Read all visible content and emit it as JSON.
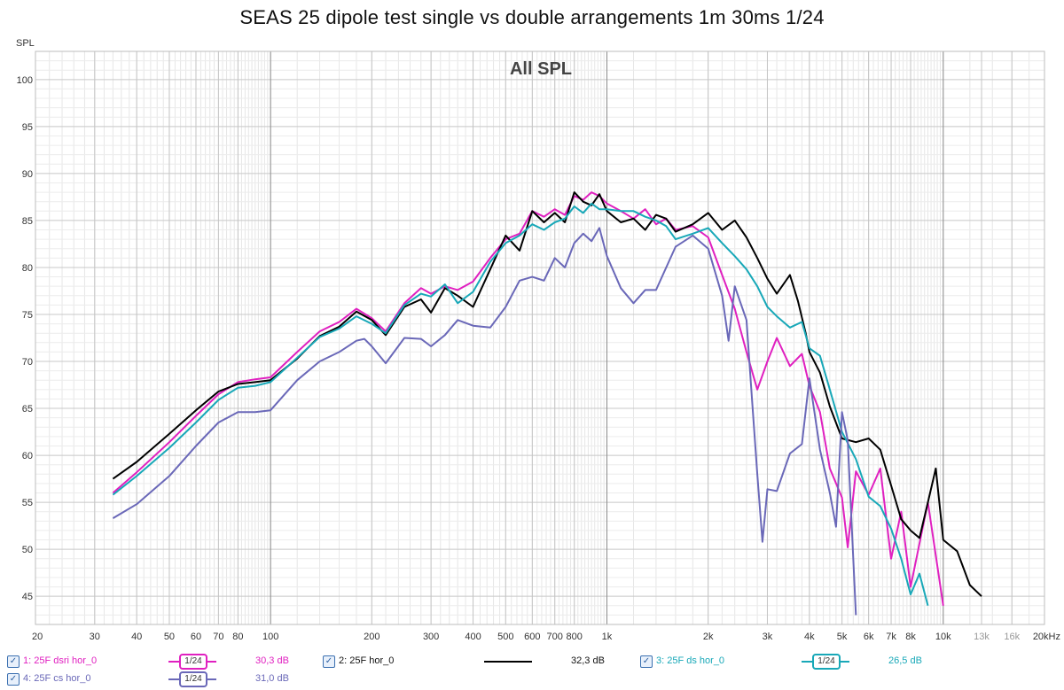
{
  "title": "SEAS 25 dipole test single vs double arrangements 1m 30ms 1/24",
  "chart_data": {
    "type": "line",
    "title": "SEAS 25 dipole test single vs double arrangements 1m 30ms 1/24",
    "inner_title": "All SPL",
    "ylabel": "SPL",
    "xunit": "Hz",
    "xscale": "log",
    "xlim": [
      20,
      20000
    ],
    "ylim": [
      42,
      103
    ],
    "grid": true,
    "x_ticks": [
      {
        "v": 20,
        "t": "20"
      },
      {
        "v": 30,
        "t": "30"
      },
      {
        "v": 40,
        "t": "40"
      },
      {
        "v": 50,
        "t": "50"
      },
      {
        "v": 60,
        "t": "60"
      },
      {
        "v": 70,
        "t": "70"
      },
      {
        "v": 80,
        "t": "80"
      },
      {
        "v": 100,
        "t": "100"
      },
      {
        "v": 200,
        "t": "200"
      },
      {
        "v": 300,
        "t": "300"
      },
      {
        "v": 400,
        "t": "400"
      },
      {
        "v": 500,
        "t": "500"
      },
      {
        "v": 600,
        "t": "600"
      },
      {
        "v": 700,
        "t": "700"
      },
      {
        "v": 800,
        "t": "800"
      },
      {
        "v": 1000,
        "t": "1k"
      },
      {
        "v": 2000,
        "t": "2k"
      },
      {
        "v": 3000,
        "t": "3k"
      },
      {
        "v": 4000,
        "t": "4k"
      },
      {
        "v": 5000,
        "t": "5k"
      },
      {
        "v": 6000,
        "t": "6k"
      },
      {
        "v": 7000,
        "t": "7k"
      },
      {
        "v": 8000,
        "t": "8k"
      },
      {
        "v": 10000,
        "t": "10k"
      },
      {
        "v": 13000,
        "t": "13k"
      },
      {
        "v": 16000,
        "t": "16k"
      },
      {
        "v": 20000,
        "t": "20kHz"
      }
    ],
    "y_ticks": [
      45,
      50,
      55,
      60,
      65,
      70,
      75,
      80,
      85,
      90,
      95,
      100
    ],
    "series": [
      {
        "name": "1: 25F dsri hor_0",
        "color": "#e020c0",
        "smoothing": "1/24",
        "offset": "30,3 dB",
        "points": [
          [
            34,
            56.0
          ],
          [
            40,
            58.2
          ],
          [
            50,
            61.4
          ],
          [
            60,
            64.2
          ],
          [
            70,
            66.5
          ],
          [
            80,
            67.8
          ],
          [
            90,
            68.1
          ],
          [
            100,
            68.3
          ],
          [
            120,
            71.0
          ],
          [
            140,
            73.2
          ],
          [
            160,
            74.2
          ],
          [
            180,
            75.6
          ],
          [
            200,
            74.6
          ],
          [
            220,
            73.2
          ],
          [
            250,
            76.2
          ],
          [
            280,
            77.8
          ],
          [
            300,
            77.2
          ],
          [
            330,
            78.0
          ],
          [
            360,
            77.6
          ],
          [
            400,
            78.5
          ],
          [
            450,
            81.0
          ],
          [
            500,
            83.0
          ],
          [
            550,
            83.6
          ],
          [
            600,
            86.0
          ],
          [
            650,
            85.4
          ],
          [
            700,
            86.2
          ],
          [
            750,
            85.6
          ],
          [
            800,
            87.6
          ],
          [
            850,
            87.2
          ],
          [
            900,
            88.0
          ],
          [
            950,
            87.6
          ],
          [
            1000,
            86.8
          ],
          [
            1100,
            86.0
          ],
          [
            1200,
            85.2
          ],
          [
            1300,
            86.2
          ],
          [
            1400,
            84.6
          ],
          [
            1500,
            85.2
          ],
          [
            1600,
            84.0
          ],
          [
            1800,
            84.4
          ],
          [
            2000,
            83.2
          ],
          [
            2200,
            79.2
          ],
          [
            2400,
            75.6
          ],
          [
            2600,
            71.0
          ],
          [
            2800,
            67.0
          ],
          [
            3000,
            70.0
          ],
          [
            3200,
            72.5
          ],
          [
            3500,
            69.5
          ],
          [
            3800,
            70.8
          ],
          [
            4000,
            67.4
          ],
          [
            4300,
            64.6
          ],
          [
            4600,
            58.6
          ],
          [
            5000,
            55.5
          ],
          [
            5200,
            50.2
          ],
          [
            5500,
            58.3
          ],
          [
            6000,
            55.8
          ],
          [
            6500,
            58.6
          ],
          [
            7000,
            49.0
          ],
          [
            7500,
            54.0
          ],
          [
            8000,
            46.0
          ],
          [
            9000,
            55.0
          ],
          [
            10000,
            44.0
          ]
        ]
      },
      {
        "name": "2: 25F hor_0",
        "color": "#000000",
        "smoothing": "",
        "offset": "32,3 dB",
        "points": [
          [
            34,
            57.5
          ],
          [
            40,
            59.3
          ],
          [
            50,
            62.3
          ],
          [
            60,
            64.8
          ],
          [
            70,
            66.8
          ],
          [
            80,
            67.6
          ],
          [
            90,
            67.8
          ],
          [
            100,
            68.0
          ],
          [
            120,
            70.3
          ],
          [
            140,
            72.7
          ],
          [
            160,
            73.7
          ],
          [
            180,
            75.3
          ],
          [
            200,
            74.4
          ],
          [
            220,
            72.8
          ],
          [
            250,
            75.8
          ],
          [
            280,
            76.6
          ],
          [
            300,
            75.2
          ],
          [
            330,
            77.8
          ],
          [
            360,
            77.0
          ],
          [
            400,
            75.8
          ],
          [
            450,
            79.8
          ],
          [
            500,
            83.4
          ],
          [
            550,
            81.8
          ],
          [
            600,
            86.0
          ],
          [
            650,
            84.8
          ],
          [
            700,
            85.8
          ],
          [
            750,
            84.8
          ],
          [
            800,
            88.0
          ],
          [
            850,
            87.0
          ],
          [
            900,
            86.6
          ],
          [
            950,
            87.8
          ],
          [
            1000,
            86.0
          ],
          [
            1100,
            84.8
          ],
          [
            1200,
            85.2
          ],
          [
            1300,
            84.0
          ],
          [
            1400,
            85.6
          ],
          [
            1500,
            85.2
          ],
          [
            1600,
            83.8
          ],
          [
            1800,
            84.6
          ],
          [
            2000,
            85.8
          ],
          [
            2200,
            84.0
          ],
          [
            2400,
            85.0
          ],
          [
            2600,
            83.2
          ],
          [
            2800,
            81.0
          ],
          [
            3000,
            78.8
          ],
          [
            3200,
            77.2
          ],
          [
            3500,
            79.2
          ],
          [
            3700,
            76.4
          ],
          [
            3900,
            73.0
          ],
          [
            4000,
            71.0
          ],
          [
            4300,
            68.8
          ],
          [
            4600,
            65.2
          ],
          [
            5000,
            61.8
          ],
          [
            5500,
            61.4
          ],
          [
            6000,
            61.8
          ],
          [
            6500,
            60.6
          ],
          [
            7000,
            56.8
          ],
          [
            7500,
            53.2
          ],
          [
            8000,
            52.0
          ],
          [
            8500,
            51.2
          ],
          [
            9000,
            55.0
          ],
          [
            9500,
            58.6
          ],
          [
            10000,
            51.0
          ],
          [
            11000,
            49.8
          ],
          [
            12000,
            46.2
          ],
          [
            13000,
            45.0
          ]
        ]
      },
      {
        "name": "3: 25F ds hor_0",
        "color": "#18a8b8",
        "smoothing": "1/24",
        "offset": "26,5 dB",
        "points": [
          [
            34,
            55.8
          ],
          [
            40,
            57.8
          ],
          [
            50,
            60.8
          ],
          [
            60,
            63.5
          ],
          [
            70,
            65.9
          ],
          [
            80,
            67.2
          ],
          [
            90,
            67.4
          ],
          [
            100,
            67.8
          ],
          [
            120,
            70.4
          ],
          [
            140,
            72.6
          ],
          [
            160,
            73.5
          ],
          [
            180,
            74.8
          ],
          [
            200,
            74.0
          ],
          [
            220,
            73.0
          ],
          [
            250,
            76.0
          ],
          [
            280,
            77.2
          ],
          [
            300,
            76.9
          ],
          [
            330,
            78.2
          ],
          [
            360,
            76.2
          ],
          [
            400,
            77.4
          ],
          [
            450,
            80.6
          ],
          [
            500,
            82.6
          ],
          [
            550,
            83.4
          ],
          [
            600,
            84.6
          ],
          [
            650,
            84.0
          ],
          [
            700,
            84.8
          ],
          [
            750,
            85.2
          ],
          [
            800,
            86.5
          ],
          [
            850,
            85.8
          ],
          [
            900,
            86.8
          ],
          [
            950,
            86.2
          ],
          [
            1000,
            86.2
          ],
          [
            1100,
            86.0
          ],
          [
            1200,
            86.0
          ],
          [
            1300,
            85.4
          ],
          [
            1400,
            85.0
          ],
          [
            1500,
            84.4
          ],
          [
            1600,
            83.0
          ],
          [
            1800,
            83.6
          ],
          [
            2000,
            84.2
          ],
          [
            2200,
            82.6
          ],
          [
            2400,
            81.2
          ],
          [
            2600,
            79.8
          ],
          [
            2800,
            78.0
          ],
          [
            3000,
            75.8
          ],
          [
            3200,
            74.8
          ],
          [
            3500,
            73.6
          ],
          [
            3800,
            74.2
          ],
          [
            4000,
            71.4
          ],
          [
            4300,
            70.6
          ],
          [
            4600,
            67.0
          ],
          [
            5000,
            62.5
          ],
          [
            5500,
            59.6
          ],
          [
            6000,
            55.6
          ],
          [
            6500,
            54.6
          ],
          [
            7000,
            52.2
          ],
          [
            7500,
            49.0
          ],
          [
            8000,
            45.2
          ],
          [
            8500,
            47.4
          ],
          [
            9000,
            44.0
          ]
        ]
      },
      {
        "name": "4: 25F cs hor_0",
        "color": "#6a68b8",
        "smoothing": "1/24",
        "offset": "31,0 dB",
        "points": [
          [
            34,
            53.3
          ],
          [
            40,
            54.8
          ],
          [
            50,
            57.8
          ],
          [
            60,
            61.0
          ],
          [
            70,
            63.5
          ],
          [
            80,
            64.6
          ],
          [
            90,
            64.6
          ],
          [
            100,
            64.8
          ],
          [
            120,
            68.0
          ],
          [
            140,
            70.0
          ],
          [
            160,
            71.0
          ],
          [
            180,
            72.2
          ],
          [
            190,
            72.4
          ],
          [
            200,
            71.6
          ],
          [
            220,
            69.8
          ],
          [
            250,
            72.5
          ],
          [
            280,
            72.4
          ],
          [
            300,
            71.6
          ],
          [
            330,
            72.8
          ],
          [
            360,
            74.4
          ],
          [
            400,
            73.8
          ],
          [
            450,
            73.6
          ],
          [
            500,
            75.8
          ],
          [
            550,
            78.6
          ],
          [
            600,
            79.0
          ],
          [
            650,
            78.6
          ],
          [
            700,
            81.0
          ],
          [
            750,
            80.0
          ],
          [
            800,
            82.6
          ],
          [
            850,
            83.6
          ],
          [
            900,
            82.8
          ],
          [
            950,
            84.2
          ],
          [
            1000,
            81.2
          ],
          [
            1100,
            77.8
          ],
          [
            1200,
            76.2
          ],
          [
            1300,
            77.6
          ],
          [
            1400,
            77.6
          ],
          [
            1600,
            82.2
          ],
          [
            1800,
            83.4
          ],
          [
            2000,
            82.0
          ],
          [
            2200,
            77.0
          ],
          [
            2300,
            72.2
          ],
          [
            2400,
            78.0
          ],
          [
            2600,
            74.4
          ],
          [
            2700,
            66.0
          ],
          [
            2800,
            58.0
          ],
          [
            2900,
            50.8
          ],
          [
            3000,
            56.4
          ],
          [
            3200,
            56.2
          ],
          [
            3500,
            60.2
          ],
          [
            3800,
            61.2
          ],
          [
            4000,
            68.2
          ],
          [
            4300,
            60.6
          ],
          [
            4600,
            56.0
          ],
          [
            4800,
            52.4
          ],
          [
            5000,
            64.6
          ],
          [
            5200,
            61.6
          ],
          [
            5500,
            43.0
          ]
        ]
      }
    ]
  },
  "legend": [
    {
      "label": "1: 25F dsri hor_0",
      "smoothing_label": "1/24",
      "offset_label": "30,3 dB"
    },
    {
      "label": "2: 25F hor_0",
      "smoothing_label": "",
      "offset_label": "32,3 dB"
    },
    {
      "label": "3: 25F ds hor_0",
      "smoothing_label": "1/24",
      "offset_label": "26,5 dB"
    },
    {
      "label": "4: 25F cs hor_0",
      "smoothing_label": "1/24",
      "offset_label": "31,0 dB"
    }
  ],
  "checkbox_glyph": "✓"
}
